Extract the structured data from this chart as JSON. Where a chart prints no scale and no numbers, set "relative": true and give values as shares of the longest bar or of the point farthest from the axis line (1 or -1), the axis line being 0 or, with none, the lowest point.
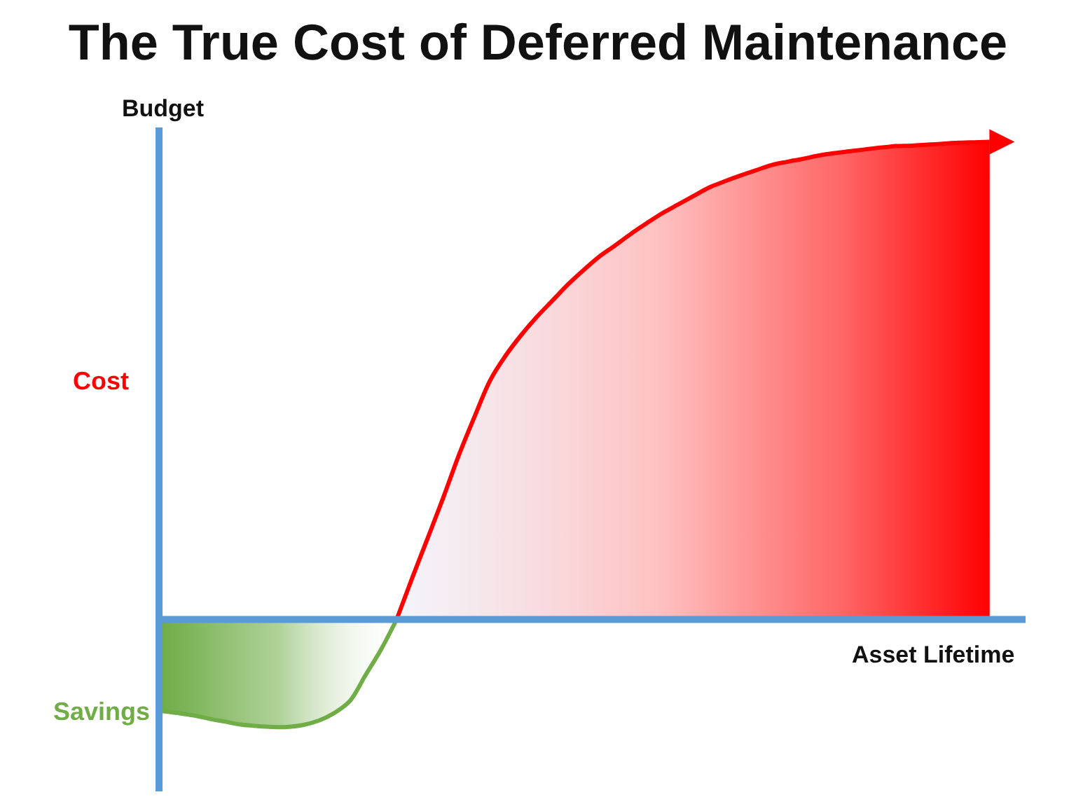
{
  "chart_data": {
    "type": "area",
    "title": "The True Cost of Deferred Maintenance",
    "xlabel": "Asset Lifetime",
    "ylabel": "Budget",
    "relative": true,
    "categories": [
      null,
      null,
      null,
      null,
      null,
      null,
      null,
      null,
      null,
      null,
      null,
      null,
      null,
      null,
      null,
      null,
      null,
      null,
      null,
      null,
      null,
      null,
      null,
      null,
      null,
      null,
      null,
      null,
      null,
      null,
      null,
      null,
      null,
      null,
      null,
      null,
      null,
      null,
      null,
      null,
      null,
      null,
      null,
      null,
      null,
      null,
      null,
      null,
      null,
      null,
      null,
      null,
      null,
      null
    ],
    "series": [
      {
        "name": "Cost",
        "color": "#ff0000",
        "values": [
          null,
          null,
          null,
          null,
          null,
          null,
          null,
          null,
          null,
          null,
          null,
          null,
          null,
          null,
          null,
          0,
          0.087,
          0.171,
          0.256,
          0.345,
          0.425,
          0.501,
          0.553,
          0.596,
          0.634,
          0.668,
          0.702,
          0.732,
          0.76,
          0.783,
          0.807,
          0.829,
          0.85,
          0.868,
          0.886,
          0.904,
          0.917,
          0.929,
          0.94,
          0.951,
          0.958,
          0.964,
          0.971,
          0.976,
          0.98,
          0.984,
          0.988,
          0.991,
          0.992,
          0.994,
          0.996,
          0.998,
          0.999,
          1
        ]
      },
      {
        "name": "Savings",
        "color": "#70ad47",
        "values": [
          -0.192,
          -0.196,
          -0.201,
          -0.208,
          -0.214,
          -0.22,
          -0.223,
          -0.225,
          -0.225,
          -0.221,
          -0.212,
          -0.196,
          -0.171,
          -0.117,
          -0.063,
          0,
          null,
          null,
          null,
          null,
          null,
          null,
          null,
          null,
          null,
          null,
          null,
          null,
          null,
          null,
          null,
          null,
          null,
          null,
          null,
          null,
          null,
          null,
          null,
          null,
          null,
          null,
          null,
          null,
          null,
          null,
          null,
          null,
          null,
          null,
          null,
          null,
          null,
          null
        ]
      }
    ],
    "ref_lines": [
      {
        "axis": "y",
        "value": 0,
        "color": "#5b9bd5"
      }
    ]
  }
}
